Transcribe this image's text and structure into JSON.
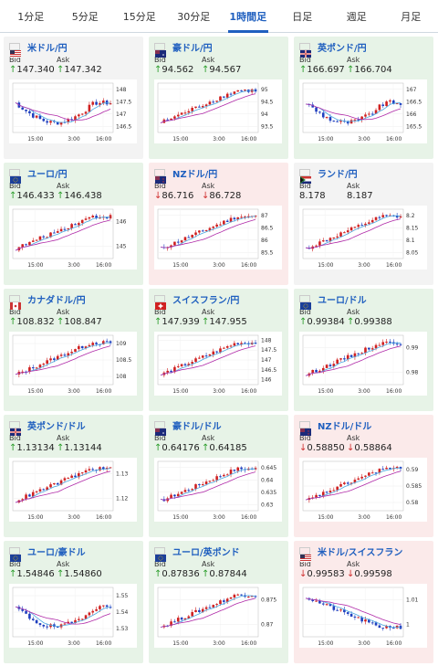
{
  "tabs": [
    "1分足",
    "5分足",
    "15分足",
    "30分足",
    "1時間足",
    "日足",
    "週足",
    "月足"
  ],
  "active_tab": "1時間足",
  "labels": {
    "bid": "Bid",
    "ask": "Ask"
  },
  "colors": {
    "up_bg": "#e7f3e7",
    "down_bg": "#fbeaea",
    "up": "#2a9d2a",
    "down": "#d03030",
    "link": "#1f5fbf",
    "candle_up": "#d02020",
    "candle_down": "#1f3fbf",
    "ma_short": "#4aa8e0",
    "ma_long": "#b02aa8"
  },
  "x_ticks": [
    "15:00",
    "3:00",
    "16:00"
  ],
  "cards": [
    {
      "pair": "米ドル/円",
      "flag": "us",
      "bg": "flat",
      "dir_bid": "up",
      "dir_ask": "up",
      "bid": "147.340",
      "ask": "147.342",
      "y_ticks": [
        "148",
        "147.5",
        "147",
        "146.5"
      ],
      "trend": "v"
    },
    {
      "pair": "豪ドル/円",
      "flag": "au",
      "bg": "up",
      "dir_bid": "up",
      "dir_ask": "up",
      "bid": "94.562",
      "ask": "94.567",
      "y_ticks": [
        "95",
        "94.5",
        "94",
        "93.5"
      ],
      "trend": "rise"
    },
    {
      "pair": "英ポンド/円",
      "flag": "gb",
      "bg": "up",
      "dir_bid": "up",
      "dir_ask": "up",
      "bid": "166.697",
      "ask": "166.704",
      "y_ticks": [
        "167",
        "166.5",
        "166",
        "165.5"
      ],
      "trend": "v"
    },
    {
      "pair": "ユーロ/円",
      "flag": "eu",
      "bg": "up",
      "dir_bid": "up",
      "dir_ask": "up",
      "bid": "146.433",
      "ask": "146.438",
      "y_ticks": [
        "146",
        "145"
      ],
      "trend": "rise"
    },
    {
      "pair": "NZドル/円",
      "flag": "nz",
      "bg": "down",
      "dir_bid": "down",
      "dir_ask": "down",
      "bid": "86.716",
      "ask": "86.728",
      "y_ticks": [
        "87",
        "86.5",
        "86",
        "85.5"
      ],
      "trend": "rise"
    },
    {
      "pair": "ランド/円",
      "flag": "za",
      "bg": "flat",
      "dir_bid": "none",
      "dir_ask": "none",
      "bid": "8.178",
      "ask": "8.187",
      "y_ticks": [
        "8.2",
        "8.15",
        "8.1",
        "8.05"
      ],
      "trend": "rise"
    },
    {
      "pair": "カナダドル/円",
      "flag": "ca",
      "bg": "up",
      "dir_bid": "up",
      "dir_ask": "up",
      "bid": "108.832",
      "ask": "108.847",
      "y_ticks": [
        "109",
        "108.5",
        "108"
      ],
      "trend": "rise"
    },
    {
      "pair": "スイスフラン/円",
      "flag": "ch",
      "bg": "up",
      "dir_bid": "up",
      "dir_ask": "up",
      "bid": "147.939",
      "ask": "147.955",
      "y_ticks": [
        "148",
        "147.5",
        "147",
        "146.5",
        "146"
      ],
      "trend": "rise"
    },
    {
      "pair": "ユーロ/ドル",
      "flag": "eu",
      "bg": "up",
      "dir_bid": "up",
      "dir_ask": "up",
      "bid": "0.99384",
      "ask": "0.99388",
      "y_ticks": [
        "0.99",
        "0.98"
      ],
      "trend": "rise"
    },
    {
      "pair": "英ポンド/ドル",
      "flag": "gb",
      "bg": "up",
      "dir_bid": "up",
      "dir_ask": "up",
      "bid": "1.13134",
      "ask": "1.13144",
      "y_ticks": [
        "1.13",
        "1.12"
      ],
      "trend": "rise"
    },
    {
      "pair": "豪ドル/ドル",
      "flag": "au",
      "bg": "up",
      "dir_bid": "up",
      "dir_ask": "up",
      "bid": "0.64176",
      "ask": "0.64185",
      "y_ticks": [
        "0.645",
        "0.64",
        "0.635",
        "0.63"
      ],
      "trend": "rise"
    },
    {
      "pair": "NZドル/ドル",
      "flag": "nz",
      "bg": "down",
      "dir_bid": "down",
      "dir_ask": "down",
      "bid": "0.58850",
      "ask": "0.58864",
      "y_ticks": [
        "0.59",
        "0.585",
        "0.58"
      ],
      "trend": "rise"
    },
    {
      "pair": "ユーロ/豪ドル",
      "flag": "eu",
      "bg": "up",
      "dir_bid": "up",
      "dir_ask": "up",
      "bid": "1.54846",
      "ask": "1.54860",
      "y_ticks": [
        "1.55",
        "1.54",
        "1.53"
      ],
      "trend": "v"
    },
    {
      "pair": "ユーロ/英ポンド",
      "flag": "eu",
      "bg": "up",
      "dir_bid": "up",
      "dir_ask": "up",
      "bid": "0.87836",
      "ask": "0.87844",
      "y_ticks": [
        "0.875",
        "0.87"
      ],
      "trend": "rise"
    },
    {
      "pair": "米ドル/スイスフラン",
      "flag": "us",
      "bg": "down",
      "dir_bid": "down",
      "dir_ask": "down",
      "bid": "0.99583",
      "ask": "0.99598",
      "y_ticks": [
        "1.01",
        "1"
      ],
      "trend": "fall"
    }
  ]
}
